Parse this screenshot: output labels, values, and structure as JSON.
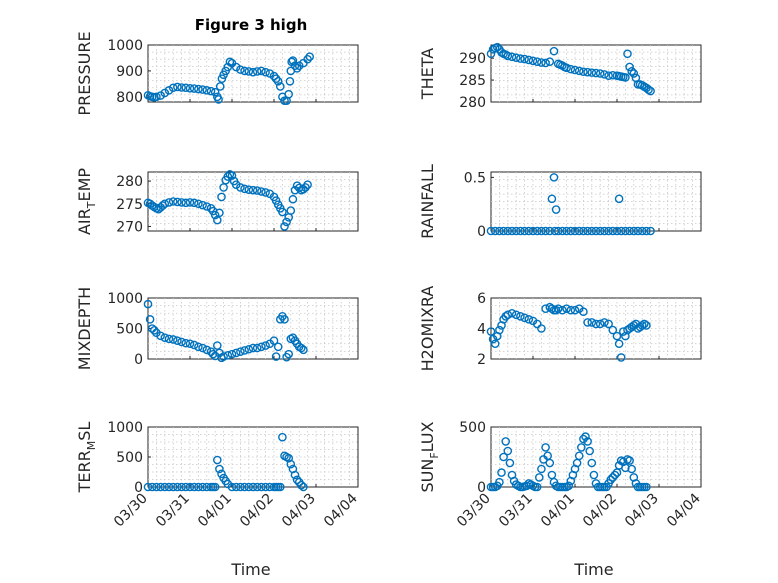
{
  "figure": {
    "title": "Figure 3 high",
    "xlabel": "Time",
    "xtick_labels": [
      "03/30",
      "03/31",
      "04/01",
      "04/02",
      "04/03",
      "04/04"
    ]
  },
  "chart_data": [
    {
      "type": "scatter",
      "ylabel_main": "PRESSURE",
      "ylabel_sub": "",
      "ylim": [
        780,
        1000
      ],
      "yticks": [
        800,
        900,
        1000
      ],
      "xlim": [
        "03/30",
        "04/04"
      ],
      "grid": true,
      "x": [
        0.0,
        0.05,
        0.1,
        0.15,
        0.2,
        0.3,
        0.4,
        0.5,
        0.6,
        0.7,
        0.8,
        0.9,
        1.0,
        1.1,
        1.2,
        1.3,
        1.4,
        1.5,
        1.6,
        1.65,
        1.68,
        1.72,
        1.76,
        1.8,
        1.85,
        1.9,
        1.95,
        2.0,
        2.1,
        2.2,
        2.3,
        2.4,
        2.5,
        2.6,
        2.7,
        2.8,
        2.9,
        3.0,
        3.05,
        3.1,
        3.15,
        3.2,
        3.25,
        3.3,
        3.35,
        3.38,
        3.4,
        3.42,
        3.45,
        3.5,
        3.55,
        3.6,
        3.7,
        3.8,
        3.85
      ],
      "y": [
        806,
        802,
        800,
        798,
        800,
        805,
        815,
        825,
        835,
        838,
        836,
        835,
        833,
        832,
        830,
        828,
        825,
        822,
        818,
        800,
        790,
        840,
        870,
        885,
        900,
        915,
        935,
        930,
        915,
        905,
        900,
        898,
        895,
        898,
        900,
        895,
        890,
        880,
        870,
        860,
        840,
        800,
        785,
        785,
        810,
        860,
        900,
        935,
        940,
        920,
        910,
        920,
        930,
        945,
        955
      ]
    },
    {
      "type": "scatter",
      "ylabel_main": "THETA",
      "ylabel_sub": "",
      "ylim": [
        280,
        293
      ],
      "yticks": [
        280,
        285,
        290
      ],
      "xlim": [
        "03/30",
        "04/04"
      ],
      "grid": true,
      "x": [
        0.0,
        0.05,
        0.1,
        0.15,
        0.2,
        0.25,
        0.3,
        0.35,
        0.4,
        0.5,
        0.6,
        0.7,
        0.8,
        0.9,
        1.0,
        1.1,
        1.2,
        1.3,
        1.4,
        1.5,
        1.6,
        1.65,
        1.7,
        1.75,
        1.8,
        1.9,
        2.0,
        2.1,
        2.2,
        2.3,
        2.4,
        2.5,
        2.6,
        2.7,
        2.8,
        2.9,
        3.0,
        3.05,
        3.1,
        3.15,
        3.2,
        3.25,
        3.3,
        3.35,
        3.4,
        3.45,
        3.5,
        3.55,
        3.6,
        3.65,
        3.7,
        3.75,
        3.8
      ],
      "y": [
        291,
        292,
        292.3,
        292.5,
        292,
        291.3,
        291,
        290.8,
        290.5,
        290.3,
        290.1,
        289.9,
        289.8,
        289.6,
        289.4,
        289.2,
        289.0,
        288.9,
        289.2,
        291.6,
        288.7,
        288.5,
        288.3,
        288.0,
        287.8,
        287.5,
        287.3,
        287.1,
        286.9,
        286.8,
        286.7,
        286.6,
        286.5,
        286.3,
        286.0,
        286.1,
        286.0,
        285.9,
        285.8,
        285.7,
        285.6,
        291,
        288,
        287,
        286.5,
        285.5,
        284,
        284,
        283.8,
        283.5,
        283.2,
        282.8,
        282.5
      ]
    },
    {
      "type": "scatter",
      "ylabel_main": "AIR",
      "ylabel_sub": "T",
      "ylabel_tail": "EMP",
      "ylim": [
        269,
        282
      ],
      "yticks": [
        270,
        275,
        280
      ],
      "xlim": [
        "03/30",
        "04/04"
      ],
      "grid": true,
      "x": [
        0.0,
        0.05,
        0.1,
        0.15,
        0.2,
        0.25,
        0.3,
        0.35,
        0.4,
        0.5,
        0.6,
        0.7,
        0.8,
        0.9,
        1.0,
        1.1,
        1.2,
        1.3,
        1.4,
        1.5,
        1.55,
        1.6,
        1.65,
        1.7,
        1.75,
        1.8,
        1.85,
        1.9,
        1.95,
        2.0,
        2.05,
        2.1,
        2.2,
        2.3,
        2.4,
        2.5,
        2.6,
        2.7,
        2.8,
        2.9,
        3.0,
        3.05,
        3.1,
        3.15,
        3.2,
        3.25,
        3.3,
        3.35,
        3.4,
        3.45,
        3.5,
        3.55,
        3.6,
        3.65,
        3.7,
        3.75,
        3.8
      ],
      "y": [
        275.2,
        275,
        274.6,
        274.3,
        274,
        273.8,
        274.2,
        274.6,
        275,
        275.3,
        275.5,
        275.4,
        275.3,
        275.2,
        275.3,
        275.2,
        275,
        274.7,
        274.4,
        274,
        273.4,
        272.5,
        271.4,
        273,
        276.5,
        278.6,
        280.2,
        281.0,
        281.5,
        281.2,
        280,
        279.2,
        278.6,
        278.3,
        278.1,
        278,
        277.9,
        277.7,
        277.5,
        277.2,
        276.5,
        275.7,
        274.8,
        274,
        273.2,
        270,
        271,
        272,
        273.5,
        276,
        278,
        279,
        278.5,
        278,
        278.2,
        278.6,
        279.2
      ]
    },
    {
      "type": "scatter",
      "ylabel_main": "RAINFALL",
      "ylabel_sub": "",
      "ylim": [
        0,
        0.55
      ],
      "yticks": [
        0,
        0.5
      ],
      "ytick_labels": [
        "0",
        "0.5"
      ],
      "xlim": [
        "03/30",
        "04/04"
      ],
      "grid": true,
      "x": [
        0.0,
        0.1,
        0.2,
        0.3,
        0.4,
        0.5,
        0.6,
        0.7,
        0.8,
        0.9,
        1.0,
        1.1,
        1.2,
        1.3,
        1.4,
        1.45,
        1.5,
        1.52,
        1.55,
        1.6,
        1.7,
        1.8,
        1.9,
        2.0,
        2.1,
        2.2,
        2.3,
        2.4,
        2.5,
        2.6,
        2.7,
        2.8,
        2.9,
        3.0,
        3.05,
        3.1,
        3.2,
        3.3,
        3.4,
        3.5,
        3.6,
        3.7,
        3.8
      ],
      "y": [
        0,
        0,
        0,
        0,
        0,
        0,
        0,
        0,
        0,
        0,
        0,
        0,
        0,
        0,
        0,
        0.3,
        0.5,
        0,
        0.2,
        0,
        0,
        0,
        0,
        0,
        0,
        0,
        0,
        0,
        0,
        0,
        0,
        0,
        0,
        0,
        0.3,
        0,
        0,
        0,
        0,
        0,
        0,
        0,
        0
      ]
    },
    {
      "type": "scatter",
      "ylabel_main": "MIXDEPTH",
      "ylabel_sub": "",
      "ylim": [
        0,
        1000
      ],
      "yticks": [
        0,
        500,
        1000
      ],
      "xlim": [
        "03/30",
        "04/04"
      ],
      "grid": true,
      "x": [
        0.0,
        0.05,
        0.1,
        0.15,
        0.2,
        0.3,
        0.4,
        0.5,
        0.6,
        0.7,
        0.8,
        0.9,
        1.0,
        1.1,
        1.2,
        1.3,
        1.4,
        1.5,
        1.55,
        1.6,
        1.65,
        1.7,
        1.75,
        1.8,
        1.9,
        2.0,
        2.1,
        2.2,
        2.3,
        2.4,
        2.5,
        2.6,
        2.7,
        2.8,
        2.9,
        3.0,
        3.05,
        3.1,
        3.15,
        3.2,
        3.25,
        3.3,
        3.35,
        3.4,
        3.45,
        3.5,
        3.55,
        3.6,
        3.65,
        3.7
      ],
      "y": [
        900,
        650,
        500,
        470,
        430,
        380,
        350,
        330,
        320,
        300,
        280,
        260,
        250,
        230,
        200,
        180,
        150,
        120,
        80,
        50,
        220,
        100,
        20,
        40,
        60,
        80,
        100,
        120,
        140,
        160,
        180,
        180,
        200,
        220,
        250,
        300,
        40,
        200,
        650,
        700,
        650,
        30,
        80,
        330,
        350,
        300,
        250,
        200,
        180,
        150
      ]
    },
    {
      "type": "scatter",
      "ylabel_main": "H2OMIXRA",
      "ylabel_sub": "",
      "ylim": [
        2,
        6
      ],
      "yticks": [
        2,
        4,
        6
      ],
      "xlim": [
        "03/30",
        "04/04"
      ],
      "grid": true,
      "x": [
        0.0,
        0.05,
        0.1,
        0.15,
        0.2,
        0.25,
        0.3,
        0.35,
        0.4,
        0.5,
        0.6,
        0.7,
        0.8,
        0.9,
        1.0,
        1.1,
        1.2,
        1.3,
        1.4,
        1.45,
        1.5,
        1.55,
        1.6,
        1.7,
        1.8,
        1.9,
        2.0,
        2.1,
        2.2,
        2.3,
        2.4,
        2.5,
        2.6,
        2.7,
        2.8,
        2.9,
        3.0,
        3.05,
        3.1,
        3.15,
        3.2,
        3.25,
        3.3,
        3.35,
        3.4,
        3.45,
        3.5,
        3.55,
        3.6,
        3.65,
        3.7
      ],
      "y": [
        3.8,
        3.3,
        3.0,
        3.5,
        3.9,
        4.2,
        4.6,
        4.8,
        4.9,
        5.0,
        4.9,
        4.8,
        4.7,
        4.6,
        4.5,
        4.3,
        4.0,
        5.3,
        5.4,
        5.3,
        5.2,
        5.2,
        5.3,
        5.2,
        5.3,
        5.2,
        5.2,
        5.3,
        5.1,
        4.4,
        4.4,
        4.3,
        4.3,
        4.4,
        4.3,
        3.9,
        3.5,
        3.0,
        2.1,
        3.8,
        3.5,
        3.9,
        4.0,
        4.1,
        4.2,
        4.3,
        4.0,
        4.1,
        4.2,
        4.3,
        4.2
      ]
    },
    {
      "type": "scatter",
      "ylabel_main": "TERR",
      "ylabel_sub": "M",
      "ylabel_tail": "SL",
      "ylim": [
        0,
        1000
      ],
      "yticks": [
        0,
        500,
        1000
      ],
      "xlim": [
        "03/30",
        "04/04"
      ],
      "grid": true,
      "x": [
        0.0,
        0.1,
        0.2,
        0.3,
        0.4,
        0.5,
        0.6,
        0.7,
        0.8,
        0.9,
        1.0,
        1.1,
        1.2,
        1.3,
        1.4,
        1.5,
        1.55,
        1.6,
        1.65,
        1.7,
        1.75,
        1.8,
        1.85,
        1.9,
        2.0,
        2.1,
        2.2,
        2.3,
        2.4,
        2.5,
        2.6,
        2.7,
        2.8,
        2.9,
        3.0,
        3.05,
        3.1,
        3.15,
        3.2,
        3.25,
        3.3,
        3.35,
        3.4,
        3.45,
        3.5,
        3.55,
        3.6,
        3.65,
        3.7
      ],
      "y": [
        0,
        0,
        0,
        0,
        0,
        0,
        0,
        0,
        0,
        0,
        0,
        0,
        0,
        0,
        0,
        0,
        0,
        0,
        450,
        300,
        220,
        150,
        100,
        50,
        0,
        0,
        0,
        0,
        0,
        0,
        0,
        0,
        0,
        0,
        0,
        0,
        0,
        0,
        830,
        520,
        500,
        480,
        380,
        300,
        200,
        120,
        80,
        30,
        0
      ]
    },
    {
      "type": "scatter",
      "ylabel_main": "SUN",
      "ylabel_sub": "F",
      "ylabel_tail": "LUX",
      "ylim": [
        0,
        500
      ],
      "yticks": [
        0,
        500
      ],
      "xlim": [
        "03/30",
        "04/04"
      ],
      "grid": true,
      "x": [
        0.0,
        0.05,
        0.1,
        0.15,
        0.2,
        0.25,
        0.3,
        0.35,
        0.4,
        0.45,
        0.5,
        0.55,
        0.6,
        0.65,
        0.7,
        0.75,
        0.8,
        0.85,
        0.9,
        0.95,
        1.0,
        1.05,
        1.1,
        1.15,
        1.2,
        1.25,
        1.3,
        1.35,
        1.4,
        1.45,
        1.5,
        1.55,
        1.6,
        1.65,
        1.7,
        1.75,
        1.8,
        1.85,
        1.9,
        1.95,
        2.0,
        2.05,
        2.1,
        2.15,
        2.2,
        2.25,
        2.3,
        2.35,
        2.4,
        2.45,
        2.5,
        2.55,
        2.6,
        2.65,
        2.7,
        2.75,
        2.8,
        2.85,
        2.9,
        2.95,
        3.0,
        3.05,
        3.1,
        3.15,
        3.2,
        3.25,
        3.3,
        3.35,
        3.4,
        3.45,
        3.5,
        3.55,
        3.6,
        3.65,
        3.7
      ],
      "y": [
        0,
        0,
        0,
        10,
        40,
        120,
        250,
        380,
        300,
        200,
        100,
        50,
        20,
        10,
        0,
        0,
        5,
        10,
        30,
        20,
        10,
        0,
        0,
        80,
        150,
        230,
        330,
        260,
        200,
        100,
        40,
        10,
        0,
        0,
        0,
        0,
        0,
        10,
        50,
        100,
        150,
        200,
        260,
        330,
        400,
        420,
        380,
        300,
        200,
        100,
        30,
        0,
        0,
        0,
        0,
        0,
        30,
        60,
        80,
        100,
        120,
        180,
        220,
        210,
        160,
        230,
        220,
        150,
        80,
        30,
        0,
        0,
        0,
        0,
        0
      ]
    }
  ]
}
